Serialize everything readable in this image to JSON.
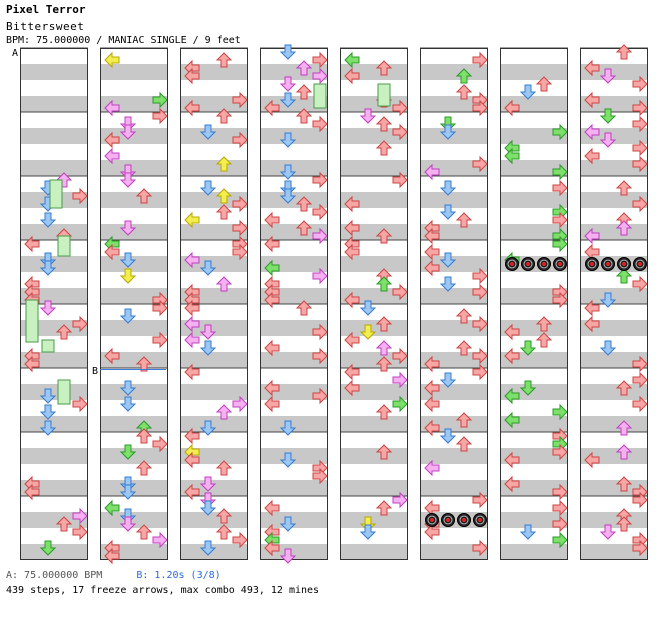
{
  "header": {
    "artist": "Pixel Terror",
    "title": "Bittersweet",
    "meta": "BPM: 75.000000 / MANIAC SINGLE / 9 feet"
  },
  "markers": {
    "a": "A",
    "b": "B"
  },
  "footer": {
    "bpm_line": "A: 75.000000 BPM",
    "stop_line": "B: 1.20s (3/8)",
    "stats": "439 steps, 17 freeze arrows, max combo 493, 12 mines"
  },
  "colors": {
    "left": "#f7a6a6",
    "down": "#9ac8f2",
    "up": "#f7a6a6",
    "right": "#f7a6a6",
    "pink": "#f4b0f0",
    "yellow": "#f2ee50",
    "green": "#7ee06a",
    "stripe": "#c8c8c8",
    "bpm_change": "#3a7de0"
  },
  "chart_data": {
    "type": "step-chart",
    "lanes": [
      "left",
      "down",
      "up",
      "right"
    ],
    "columns": 8,
    "measures_per_column": 8,
    "steps": 439,
    "freeze_arrows": 17,
    "max_combo": 493,
    "mines": 12
  }
}
